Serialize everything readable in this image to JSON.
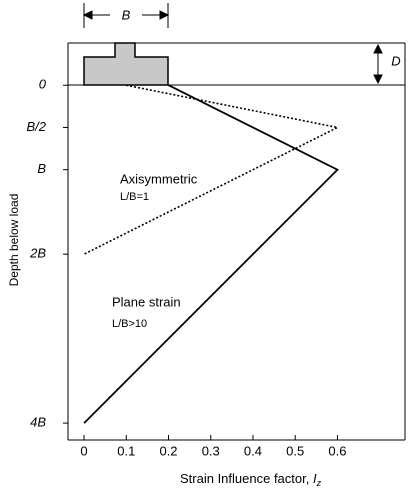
{
  "chart_data": {
    "type": "line",
    "xlabel": "Strain Influence factor,",
    "xlabel_symbol": "I",
    "xlabel_subscript": "z",
    "ylabel": "Depth below load",
    "xlim": [
      -0.038,
      0.76
    ],
    "xticks": [
      0,
      0.1,
      0.2,
      0.3,
      0.4,
      0.5,
      0.6
    ],
    "ylim": [
      -0.5,
      4.2
    ],
    "yticks": [
      0,
      {
        "value": 0.5,
        "label": "B/2"
      },
      {
        "value": 1,
        "label": "B"
      },
      {
        "value": 2,
        "label": "2B"
      },
      {
        "value": 4,
        "label": "4B"
      }
    ],
    "width_label": "B",
    "embedment_label": "D",
    "series": [
      {
        "name": "Axisymmetric",
        "note": "L/B=1",
        "color": "#000000",
        "style": "dotted",
        "x": [
          0.1,
          0.6,
          0
        ],
        "values": [
          0,
          0.5,
          2
        ]
      },
      {
        "name": "Plane strain",
        "note": "L/B>10",
        "color": "#000000",
        "style": "solid",
        "x": [
          0.2,
          0.6,
          0
        ],
        "values": [
          0,
          1,
          4
        ]
      }
    ]
  }
}
